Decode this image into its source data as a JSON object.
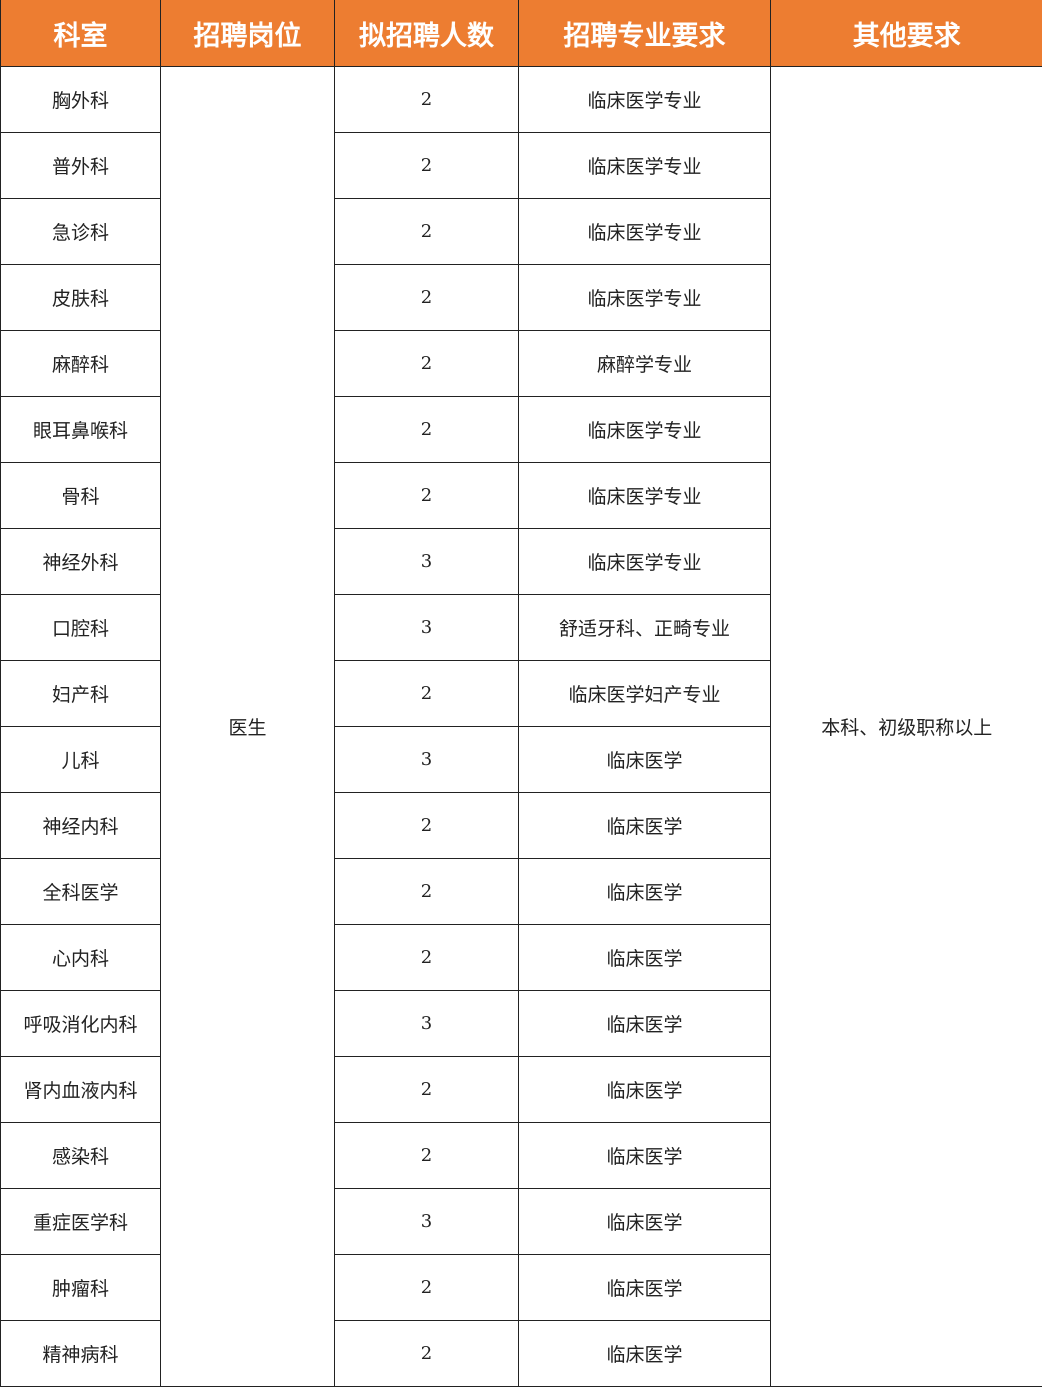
{
  "header_color": "#ED7D31",
  "headers": [
    "科室",
    "招聘岗位",
    "拟招聘人数",
    "招聘专业要求",
    "其他要求"
  ],
  "position": "医生",
  "other_requirement": "本科、初级职称以上",
  "rows": [
    {
      "dept": "胸外科",
      "count": "2",
      "major": "临床医学专业"
    },
    {
      "dept": "普外科",
      "count": "2",
      "major": "临床医学专业"
    },
    {
      "dept": "急诊科",
      "count": "2",
      "major": "临床医学专业"
    },
    {
      "dept": "皮肤科",
      "count": "2",
      "major": "临床医学专业"
    },
    {
      "dept": "麻醉科",
      "count": "2",
      "major": "麻醉学专业"
    },
    {
      "dept": "眼耳鼻喉科",
      "count": "2",
      "major": "临床医学专业"
    },
    {
      "dept": "骨科",
      "count": "2",
      "major": "临床医学专业"
    },
    {
      "dept": "神经外科",
      "count": "3",
      "major": "临床医学专业"
    },
    {
      "dept": "口腔科",
      "count": "3",
      "major": "舒适牙科、正畸专业"
    },
    {
      "dept": "妇产科",
      "count": "2",
      "major": "临床医学妇产专业"
    },
    {
      "dept": "儿科",
      "count": "3",
      "major": "临床医学"
    },
    {
      "dept": "神经内科",
      "count": "2",
      "major": "临床医学"
    },
    {
      "dept": "全科医学",
      "count": "2",
      "major": "临床医学"
    },
    {
      "dept": "心内科",
      "count": "2",
      "major": "临床医学"
    },
    {
      "dept": "呼吸消化内科",
      "count": "3",
      "major": "临床医学"
    },
    {
      "dept": "肾内血液内科",
      "count": "2",
      "major": "临床医学"
    },
    {
      "dept": "感染科",
      "count": "2",
      "major": "临床医学"
    },
    {
      "dept": "重症医学科",
      "count": "3",
      "major": "临床医学"
    },
    {
      "dept": "肿瘤科",
      "count": "2",
      "major": "临床医学"
    },
    {
      "dept": "精神病科",
      "count": "2",
      "major": "临床医学"
    }
  ]
}
